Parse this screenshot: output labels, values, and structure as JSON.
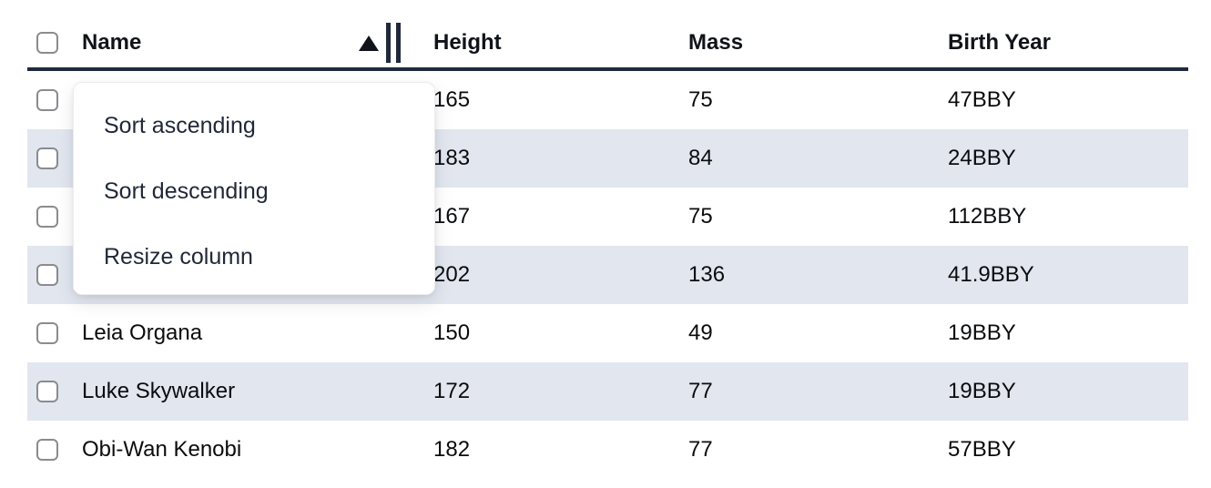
{
  "table": {
    "columns": {
      "name": {
        "label": "Name",
        "sort": "ascending"
      },
      "height": {
        "label": "Height"
      },
      "mass": {
        "label": "Mass"
      },
      "birth_year": {
        "label": "Birth Year"
      }
    },
    "rows": [
      {
        "name": "",
        "height": "165",
        "mass": "75",
        "birth_year": "47BBY"
      },
      {
        "name": "",
        "height": "183",
        "mass": "84",
        "birth_year": "24BBY"
      },
      {
        "name": "",
        "height": "167",
        "mass": "75",
        "birth_year": "112BBY"
      },
      {
        "name": "",
        "height": "202",
        "mass": "136",
        "birth_year": "41.9BBY"
      },
      {
        "name": "Leia Organa",
        "height": "150",
        "mass": "49",
        "birth_year": "19BBY"
      },
      {
        "name": "Luke Skywalker",
        "height": "172",
        "mass": "77",
        "birth_year": "19BBY"
      },
      {
        "name": "Obi-Wan Kenobi",
        "height": "182",
        "mass": "77",
        "birth_year": "57BBY"
      }
    ]
  },
  "column_menu": {
    "items": [
      {
        "label": "Sort ascending"
      },
      {
        "label": "Sort descending"
      },
      {
        "label": "Resize column"
      }
    ]
  },
  "icons": {
    "sort_ascending": "up-triangle",
    "resize_handle": "double-vertical-bars"
  },
  "colors": {
    "header_border": "#1e293b",
    "row_stripe": "#e1e6ef",
    "menu_text": "#1f2838"
  }
}
